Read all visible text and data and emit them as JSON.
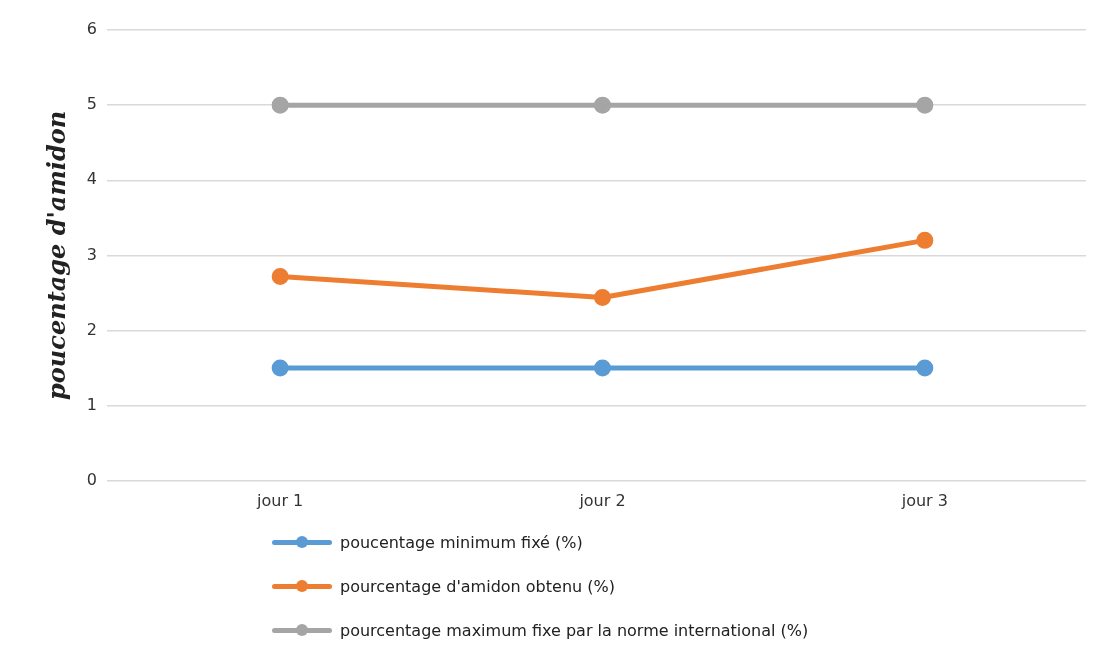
{
  "chart_data": {
    "type": "line",
    "ylabel": "poucentage d'amidon",
    "categories": [
      "jour 1",
      "jour 2",
      "jour 3"
    ],
    "series": [
      {
        "name": "poucentage minimum fixé (%)",
        "color": "#5b9bd5",
        "values": [
          1.5,
          1.5,
          1.5
        ]
      },
      {
        "name": "pourcentage d'amidon obtenu (%)",
        "color": "#ed7d31",
        "values": [
          2.72,
          2.44,
          3.2
        ]
      },
      {
        "name": "pourcentage maximum fixe par la norme international (%)",
        "color": "#a5a5a5",
        "values": [
          5,
          5,
          5
        ]
      }
    ],
    "ylim": [
      0,
      6
    ],
    "yticks": [
      0,
      1,
      2,
      3,
      4,
      5,
      6
    ],
    "grid": "y",
    "legend": "bottom",
    "marker": "circle",
    "line_style": "solid"
  }
}
